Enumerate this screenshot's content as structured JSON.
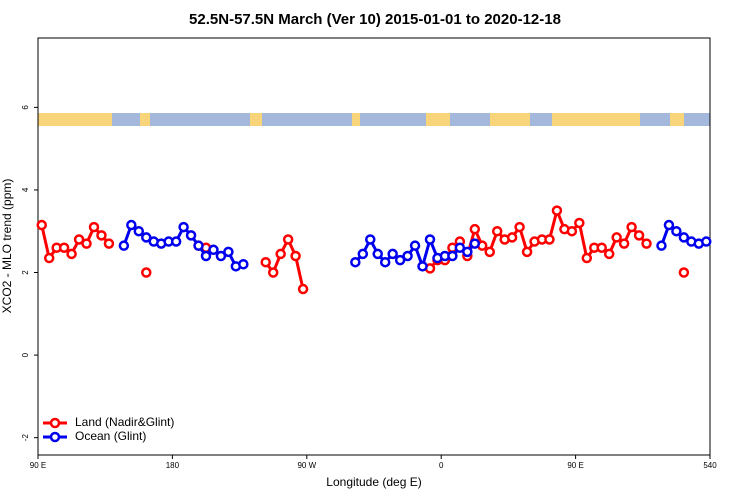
{
  "chart_data": {
    "type": "line",
    "title": "52.5N-57.5N March (Ver 10)   2015-01-01 to 2020-12-18",
    "x_label": "Longitude (deg E)",
    "y_label": "XCO2 - MLO trend (ppm)",
    "x": [
      92.5,
      97.5,
      102.5,
      107.5,
      112.5,
      117.5,
      122.5,
      127.5,
      132.5,
      137.5,
      142.5,
      147.5,
      152.5,
      157.5,
      162.5,
      167.5,
      172.5,
      177.5,
      182.5,
      187.5,
      192.5,
      197.5,
      202.5,
      207.5,
      212.5,
      217.5,
      222.5,
      227.5,
      232.5,
      237.5,
      242.5,
      247.5,
      252.5,
      257.5,
      262.5,
      267.5,
      272.5,
      277.5,
      282.5,
      287.5,
      292.5,
      297.5,
      302.5,
      307.5,
      312.5,
      317.5,
      322.5,
      327.5,
      332.5,
      337.5,
      342.5,
      347.5,
      352.5,
      357.5,
      362.5,
      367.5,
      372.5,
      377.5,
      382.5,
      387.5,
      392.5,
      397.5,
      402.5,
      407.5,
      412.5,
      417.5,
      422.5,
      427.5,
      432.5,
      437.5,
      442.5,
      447.5,
      452.5,
      457.5,
      462.5,
      467.5,
      472.5,
      477.5,
      482.5,
      487.5,
      492.5,
      497.5,
      502.5,
      507.5,
      512.5,
      517.5,
      522.5,
      527.5,
      532.5,
      537.5
    ],
    "series": [
      {
        "name": "Land (Nadir&Glint)",
        "color": "#ff0000",
        "values": [
          3.15,
          2.35,
          2.6,
          2.6,
          2.45,
          2.8,
          2.7,
          3.1,
          2.9,
          2.7,
          null,
          null,
          null,
          null,
          2.0,
          null,
          null,
          null,
          null,
          null,
          null,
          2.65,
          2.6,
          null,
          null,
          null,
          null,
          null,
          null,
          null,
          2.25,
          2.0,
          2.45,
          2.8,
          2.4,
          1.6,
          null,
          null,
          null,
          null,
          null,
          null,
          null,
          null,
          null,
          null,
          null,
          null,
          null,
          null,
          null,
          null,
          2.1,
          2.3,
          2.3,
          2.6,
          2.75,
          2.4,
          3.05,
          2.65,
          2.5,
          3.0,
          2.8,
          2.85,
          3.1,
          2.5,
          2.75,
          2.8,
          2.8,
          3.5,
          3.05,
          3.0,
          3.2,
          2.35,
          2.6,
          2.6,
          2.45,
          2.85,
          2.7,
          3.1,
          2.9,
          2.7,
          null,
          null,
          null,
          null,
          2.0,
          null,
          null,
          null
        ]
      },
      {
        "name": "Ocean (Glint)",
        "color": "#0000ee",
        "values": [
          null,
          null,
          null,
          null,
          null,
          null,
          null,
          null,
          null,
          null,
          null,
          2.65,
          3.15,
          3.0,
          2.85,
          2.75,
          2.7,
          2.75,
          2.75,
          3.1,
          2.9,
          2.65,
          2.4,
          2.55,
          2.4,
          2.5,
          2.15,
          2.2,
          null,
          null,
          null,
          null,
          null,
          null,
          null,
          null,
          null,
          null,
          null,
          null,
          null,
          null,
          2.25,
          2.45,
          2.8,
          2.45,
          2.25,
          2.45,
          2.3,
          2.4,
          2.65,
          2.15,
          2.8,
          2.35,
          2.4,
          2.4,
          2.6,
          2.5,
          2.7,
          null,
          null,
          null,
          null,
          null,
          null,
          null,
          null,
          null,
          null,
          null,
          null,
          null,
          null,
          null,
          null,
          null,
          null,
          null,
          null,
          null,
          null,
          null,
          null,
          2.65,
          3.15,
          3.0,
          2.85,
          2.75,
          2.7,
          2.75
        ]
      }
    ],
    "xlim": [
      90,
      540
    ],
    "xticks": [
      {
        "value": 90,
        "label": "90 E"
      },
      180,
      {
        "value": 270,
        "label": "90 W"
      },
      {
        "value": 360,
        "label": "0"
      },
      {
        "value": 450,
        "label": "90 E"
      },
      540
    ],
    "ylim": [
      -2.42,
      7.68
    ],
    "yticks": [
      -2,
      0,
      2,
      4,
      6
    ],
    "legend": "bottom-left"
  }
}
